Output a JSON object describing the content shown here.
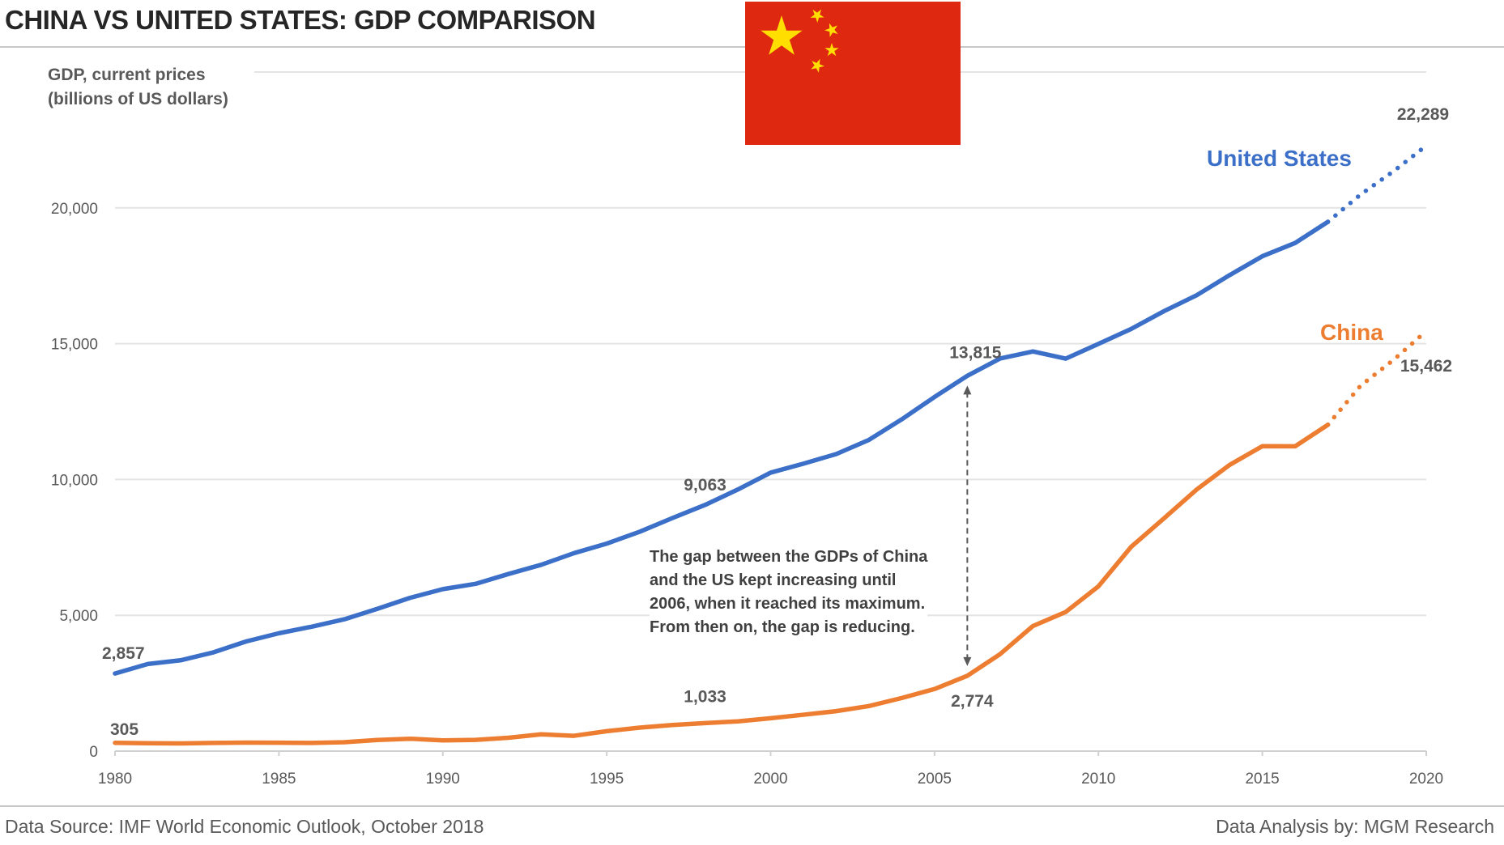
{
  "header": {
    "title": "CHINA VS UNITED STATES: GDP COMPARISON"
  },
  "flag": {
    "name": "china-flag",
    "colors": {
      "field": "#de2910",
      "stars": "#ffde00"
    }
  },
  "footer": {
    "source": "Data Source: IMF World Economic Outlook, October 2018",
    "credit": "Data Analysis by: MGM Research"
  },
  "chart_data": {
    "type": "line",
    "title": "CHINA VS UNITED STATES: GDP COMPARISON",
    "ylabel_lines": [
      "GDP, current prices",
      "(billions of US dollars)"
    ],
    "xlabel": "",
    "xlim": [
      1980,
      2020
    ],
    "ylim": [
      0,
      25000
    ],
    "grid": true,
    "x_ticks": [
      "1980",
      "1985",
      "1990",
      "1995",
      "2000",
      "2005",
      "2010",
      "2015",
      "2020"
    ],
    "y_ticks": [
      "0",
      "5,000",
      "10,000",
      "15,000",
      "20,000"
    ],
    "x": [
      1980,
      1981,
      1982,
      1983,
      1984,
      1985,
      1986,
      1987,
      1988,
      1989,
      1990,
      1991,
      1992,
      1993,
      1994,
      1995,
      1996,
      1997,
      1998,
      1999,
      2000,
      2001,
      2002,
      2003,
      2004,
      2005,
      2006,
      2007,
      2008,
      2009,
      2010,
      2011,
      2012,
      2013,
      2014,
      2015,
      2016,
      2017,
      2018,
      2019,
      2020
    ],
    "projection_start": 2017,
    "series": [
      {
        "name": "United States",
        "color": "#3b6fc8",
        "values": [
          2857,
          3207,
          3344,
          3634,
          4037,
          4339,
          4580,
          4855,
          5236,
          5642,
          5963,
          6158,
          6520,
          6859,
          7287,
          7640,
          8073,
          8578,
          9063,
          9631,
          10252,
          10582,
          10936,
          11458,
          12214,
          13037,
          13815,
          14452,
          14713,
          14449,
          14992,
          15543,
          16197,
          16785,
          17522,
          18219,
          18707,
          19485,
          20494,
          21345,
          22289
        ]
      },
      {
        "name": "China",
        "color": "#ed7d31",
        "values": [
          305,
          290,
          283,
          302,
          313,
          309,
          301,
          327,
          410,
          456,
          395,
          414,
          492,
          617,
          564,
          734,
          864,
          962,
          1033,
          1094,
          1211,
          1339,
          1471,
          1660,
          1955,
          2286,
          2774,
          3571,
          4604,
          5121,
          6066,
          7522,
          8570,
          9635,
          10535,
          11226,
          11222,
          12015,
          13457,
          14400,
          15462
        ]
      }
    ],
    "data_labels": [
      {
        "series": "United States",
        "x": 1980,
        "text": "2,857"
      },
      {
        "series": "United States",
        "x": 1998,
        "text": "9,063"
      },
      {
        "series": "United States",
        "x": 2006,
        "text": "13,815"
      },
      {
        "series": "United States",
        "x": 2020,
        "text": "22,289"
      },
      {
        "series": "China",
        "x": 1980,
        "text": "305"
      },
      {
        "series": "China",
        "x": 1998,
        "text": "1,033"
      },
      {
        "series": "China",
        "x": 2006,
        "text": "2,774"
      },
      {
        "series": "China",
        "x": 2020,
        "text": "15,462"
      }
    ],
    "annotation": {
      "x": 2006,
      "lines": [
        "The gap between the GDPs of China",
        "and the US kept increasing until",
        "2006, when it reached its maximum.",
        "From then on, the gap is reducing."
      ]
    }
  }
}
